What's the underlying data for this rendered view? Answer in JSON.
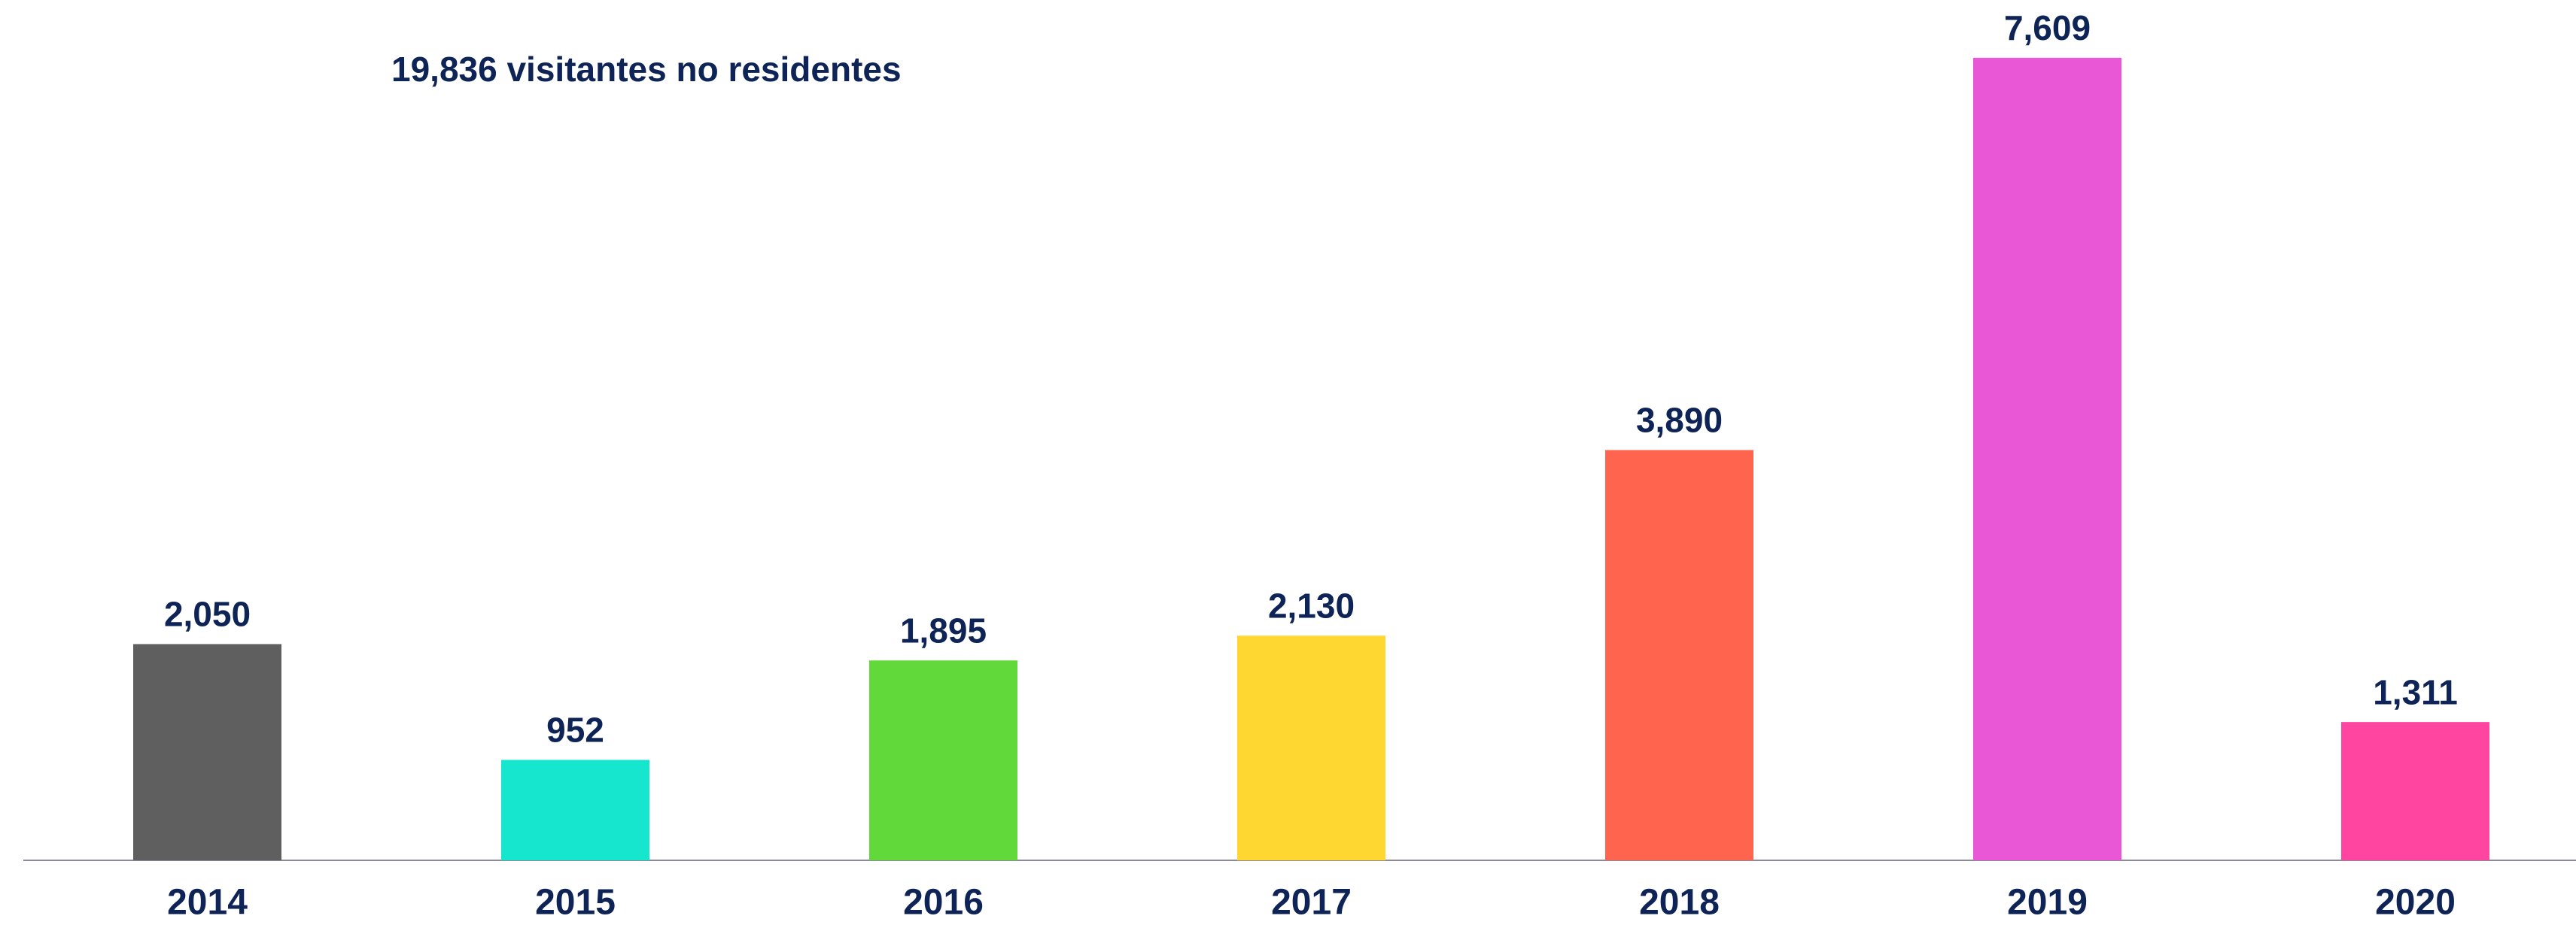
{
  "chart_data": {
    "type": "bar",
    "annotation": "19,836 visitantes no residentes",
    "categories": [
      "2014",
      "2015",
      "2016",
      "2017",
      "2018",
      "2019",
      "2020"
    ],
    "values": [
      2050,
      952,
      1895,
      2130,
      3890,
      7609,
      1311
    ],
    "value_labels": [
      "2,050",
      "952",
      "1,895",
      "2,130",
      "3,890",
      "7,609",
      "1,311"
    ],
    "colors": [
      "#5f5f5f",
      "#17e6cf",
      "#62d93a",
      "#ffd730",
      "#ff644e",
      "#e957d6",
      "#ff45a0"
    ],
    "ylim": [
      0,
      8000
    ],
    "grid": false
  }
}
